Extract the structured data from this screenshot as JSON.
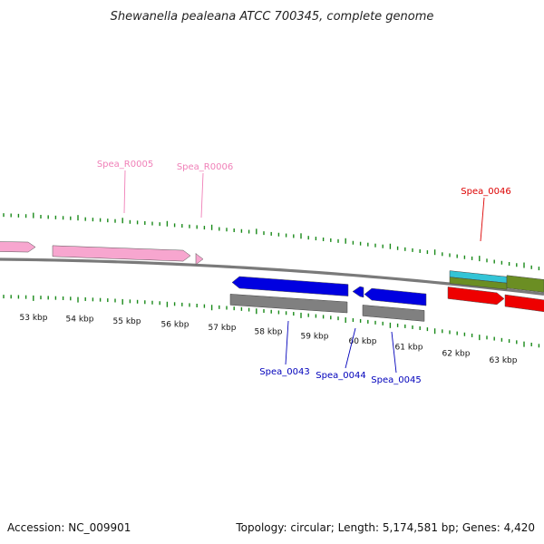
{
  "title": "Shewanella pealeana ATCC 700345, complete genome",
  "footer": {
    "accession": "Accession: NC_009901",
    "summary": "Topology: circular; Length: 5,174,581 bp; Genes: 4,420"
  },
  "colors": {
    "background": "#ffffff",
    "backbone": "#7a7a7a",
    "tick": "#1a8a1a",
    "rna_gene": "#f7a6cf",
    "cds_forward_red": "#ee0000",
    "cds_reverse_blue": "#0000e0",
    "cog_gray": "#808080",
    "cog_cyan": "#33c4d6",
    "cog_olive": "#6b8e23",
    "rna_label": "#f080b8",
    "red_label": "#dd0000",
    "blue_label": "#0000bb"
  },
  "scale_labels": [
    "53 kbp",
    "54 kbp",
    "55 kbp",
    "56 kbp",
    "57 kbp",
    "58 kbp",
    "59 kbp",
    "60 kbp",
    "61 kbp",
    "62 kbp",
    "63 kbp"
  ],
  "gene_labels": [
    {
      "name": "Spea_R0005",
      "type": "rRNA"
    },
    {
      "name": "Spea_R0006",
      "type": "rRNA"
    },
    {
      "name": "Spea_0046",
      "type": "CDS-forward"
    },
    {
      "name": "Spea_0043",
      "type": "CDS-reverse"
    },
    {
      "name": "Spea_0044",
      "type": "CDS-reverse"
    },
    {
      "name": "Spea_0045",
      "type": "CDS-reverse"
    }
  ]
}
